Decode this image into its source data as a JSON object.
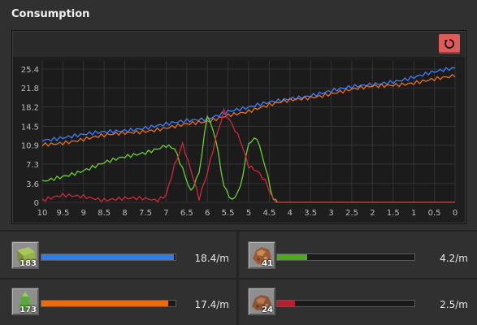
{
  "window": {
    "title": "Consumption"
  },
  "toolbar": {
    "reset_icon": "reset-icon",
    "reset_color": "#e05a5a"
  },
  "chart_data": {
    "type": "line",
    "x_axis": {
      "ticks": [
        "10",
        "9.5",
        "9",
        "8.5",
        "8",
        "7.5",
        "7",
        "6.5",
        "6",
        "5.5",
        "5",
        "4.5",
        "4",
        "3.5",
        "3",
        "2.5",
        "2",
        "1.5",
        "1",
        "0.5",
        "0"
      ],
      "range": [
        10,
        0
      ]
    },
    "y_axis": {
      "ticks": [
        "0",
        "3.6",
        "7.3",
        "10.9",
        "14.5",
        "18.2",
        "21.8",
        "25.4"
      ],
      "range": [
        0,
        25.4
      ]
    },
    "grid": true,
    "series": [
      {
        "color": "#3d7fff",
        "points": [
          [
            10,
            12.0
          ],
          [
            9,
            12.8
          ],
          [
            8,
            13.8
          ],
          [
            7,
            14.8
          ],
          [
            6,
            16.0
          ],
          [
            5.5,
            17.5
          ],
          [
            5,
            18.0
          ],
          [
            4,
            19.8
          ],
          [
            3,
            21.2
          ],
          [
            2,
            22.5
          ],
          [
            1,
            23.8
          ],
          [
            0,
            25.6
          ]
        ]
      },
      {
        "color": "#e8701e",
        "points": [
          [
            10,
            11.0
          ],
          [
            9,
            12.0
          ],
          [
            8,
            13.2
          ],
          [
            7,
            14.2
          ],
          [
            6,
            15.3
          ],
          [
            5.5,
            16.8
          ],
          [
            5,
            17.4
          ],
          [
            4,
            19.4
          ],
          [
            3,
            20.8
          ],
          [
            2,
            22.0
          ],
          [
            1,
            22.9
          ],
          [
            0,
            23.9
          ]
        ]
      },
      {
        "color": "#6ccf2a",
        "points": [
          [
            10,
            3.8
          ],
          [
            9.5,
            5.0
          ],
          [
            9,
            6.2
          ],
          [
            8.5,
            7.5
          ],
          [
            8,
            8.5
          ],
          [
            7.5,
            9.5
          ],
          [
            7,
            11.0
          ],
          [
            6.8,
            10.5
          ],
          [
            6.6,
            6.5
          ],
          [
            6.4,
            2.0
          ],
          [
            6.2,
            5.5
          ],
          [
            6,
            16.5
          ],
          [
            5.8,
            12.0
          ],
          [
            5.6,
            3.0
          ],
          [
            5.4,
            0.3
          ],
          [
            5.2,
            3.0
          ],
          [
            5,
            11.5
          ],
          [
            4.8,
            12.5
          ],
          [
            4.6,
            7.0
          ],
          [
            4.4,
            0.3
          ],
          [
            4.3,
            0
          ],
          [
            0,
            0
          ]
        ]
      },
      {
        "color": "#d0283a",
        "points": [
          [
            10,
            0.2
          ],
          [
            9.5,
            1.3
          ],
          [
            9,
            1.3
          ],
          [
            8.5,
            0.5
          ],
          [
            8,
            0.6
          ],
          [
            7.5,
            0.6
          ],
          [
            7.2,
            0.6
          ],
          [
            7,
            1.5
          ],
          [
            6.8,
            7.0
          ],
          [
            6.6,
            11.0
          ],
          [
            6.4,
            6.0
          ],
          [
            6.2,
            0.5
          ],
          [
            6,
            5.5
          ],
          [
            5.8,
            12.0
          ],
          [
            5.6,
            17.5
          ],
          [
            5.4,
            15.0
          ],
          [
            5.2,
            12.0
          ],
          [
            5,
            7.0
          ],
          [
            4.8,
            6.0
          ],
          [
            4.6,
            4.0
          ],
          [
            4.4,
            0.3
          ],
          [
            4.3,
            0
          ],
          [
            0,
            0
          ]
        ]
      }
    ]
  },
  "items": [
    {
      "icon": "grass-block-icon",
      "count": "183",
      "fill": 0.988,
      "bar_color": "#2f7de8",
      "rate": "18.4/m"
    },
    {
      "icon": "tree-sapling-icon",
      "count": "173",
      "fill": 0.945,
      "bar_color": "#e86c12",
      "rate": "17.4/m"
    },
    {
      "icon": "copper-ore-icon",
      "count": "41",
      "fill": 0.22,
      "bar_color": "#4aaa1c",
      "rate": "4.2/m"
    },
    {
      "icon": "raw-ore-chunk-icon",
      "count": "24",
      "fill": 0.13,
      "bar_color": "#b5202e",
      "rate": "2.5/m"
    }
  ]
}
